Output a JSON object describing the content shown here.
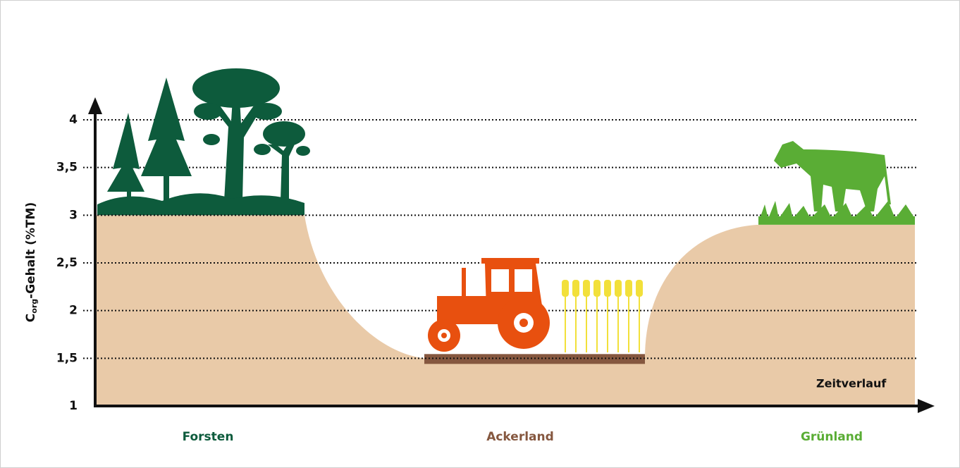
{
  "chart_data": {
    "type": "area",
    "ylabel": {
      "main": "C",
      "sub": "org",
      "rest": "-Gehalt (%TM)"
    },
    "xlabel": "Zeitverlauf",
    "categories": [
      "Forsten",
      "Ackerland",
      "Grünland"
    ],
    "values": [
      3,
      1.5,
      2.9
    ],
    "colors": [
      "#0d5b3c",
      "#85573f",
      "#5aad35"
    ],
    "fill": "#e9caa8",
    "ylim": [
      1,
      4
    ],
    "yticks": [
      1,
      {
        "value": 1.5,
        "label": "1,5"
      },
      2,
      {
        "value": 2.5,
        "label": "2,5"
      },
      3,
      {
        "value": 3.5,
        "label": "3,5"
      },
      4
    ],
    "grid": true
  }
}
